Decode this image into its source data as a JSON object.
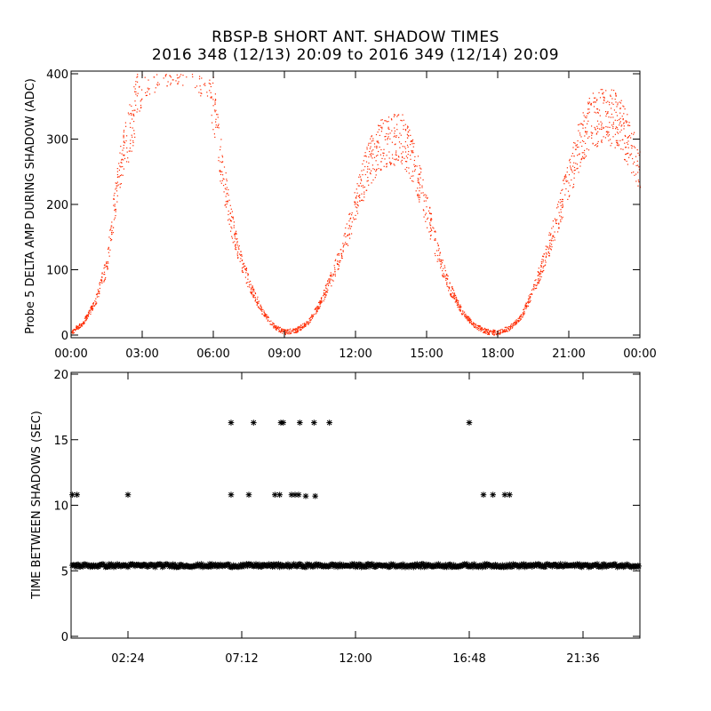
{
  "header": {
    "title": "RBSP-B SHORT ANT. SHADOW TIMES",
    "subtitle": "2016 348 (12/13) 20:09 to 2016 349 (12/14) 20:09"
  },
  "chart_data": [
    {
      "type": "scatter",
      "ylabel": "Probe 5 DELTA AMP DURING SHADOW (ADC)",
      "xlabel": "",
      "xlim": [
        0,
        24
      ],
      "ylim": [
        0,
        400
      ],
      "x_ticks": [
        "00:00",
        "03:00",
        "06:00",
        "09:00",
        "12:00",
        "15:00",
        "18:00",
        "21:00",
        "00:00"
      ],
      "y_ticks": [
        0,
        100,
        200,
        300,
        400
      ],
      "color": "#ff2a00",
      "envelope": {
        "x": [
          0.0,
          0.5,
          1.0,
          1.5,
          2.0,
          2.5,
          3.0,
          3.2,
          4.0,
          5.0,
          5.8,
          6.2,
          6.6,
          7.0,
          7.5,
          8.0,
          8.5,
          9.0,
          9.5,
          10.0,
          10.5,
          11.0,
          11.5,
          12.0,
          12.5,
          13.0,
          13.5,
          14.0,
          14.5,
          15.0,
          15.5,
          16.0,
          16.5,
          17.0,
          17.5,
          18.0,
          18.5,
          19.0,
          19.5,
          20.0,
          20.5,
          21.0,
          21.5,
          22.0,
          22.5,
          23.0,
          23.5,
          24.0
        ],
        "y": [
          5,
          20,
          50,
          110,
          250,
          320,
          400,
          420,
          440,
          440,
          410,
          290,
          200,
          130,
          80,
          40,
          15,
          5,
          8,
          20,
          50,
          90,
          140,
          200,
          260,
          290,
          300,
          300,
          260,
          190,
          120,
          70,
          35,
          15,
          6,
          4,
          12,
          30,
          70,
          120,
          180,
          240,
          300,
          330,
          340,
          330,
          300,
          250
        ]
      },
      "spread": 40
    },
    {
      "type": "scatter",
      "ylabel": "TIME BETWEEN SHADOWS (SEC)",
      "xlabel": "",
      "xlim": [
        0,
        24
      ],
      "ylim": [
        0,
        20
      ],
      "x_ticks": [
        {
          "label": "02:24",
          "value": 2.4
        },
        {
          "label": "07:12",
          "value": 7.2
        },
        {
          "label": "12:00",
          "value": 12.0
        },
        {
          "label": "16:48",
          "value": 16.8
        },
        {
          "label": "21:36",
          "value": 21.6
        }
      ],
      "y_ticks": [
        0,
        5,
        10,
        15,
        20
      ],
      "baseline": 5.4,
      "marker": "*",
      "points": [
        {
          "x": 0.05,
          "y": 10.8
        },
        {
          "x": 0.25,
          "y": 10.8
        },
        {
          "x": 2.4,
          "y": 10.8
        },
        {
          "x": 6.75,
          "y": 16.3
        },
        {
          "x": 6.75,
          "y": 10.8
        },
        {
          "x": 7.5,
          "y": 10.8
        },
        {
          "x": 7.7,
          "y": 16.3
        },
        {
          "x": 8.6,
          "y": 10.8
        },
        {
          "x": 8.8,
          "y": 10.8
        },
        {
          "x": 8.85,
          "y": 16.3
        },
        {
          "x": 8.95,
          "y": 16.3
        },
        {
          "x": 9.3,
          "y": 10.8
        },
        {
          "x": 9.45,
          "y": 10.8
        },
        {
          "x": 9.6,
          "y": 10.8
        },
        {
          "x": 9.65,
          "y": 16.3
        },
        {
          "x": 9.9,
          "y": 10.7
        },
        {
          "x": 10.3,
          "y": 10.7
        },
        {
          "x": 10.25,
          "y": 16.3
        },
        {
          "x": 10.9,
          "y": 16.3
        },
        {
          "x": 16.8,
          "y": 16.3
        },
        {
          "x": 17.4,
          "y": 10.8
        },
        {
          "x": 17.8,
          "y": 10.8
        },
        {
          "x": 18.3,
          "y": 10.8
        },
        {
          "x": 18.5,
          "y": 10.8
        }
      ]
    }
  ]
}
